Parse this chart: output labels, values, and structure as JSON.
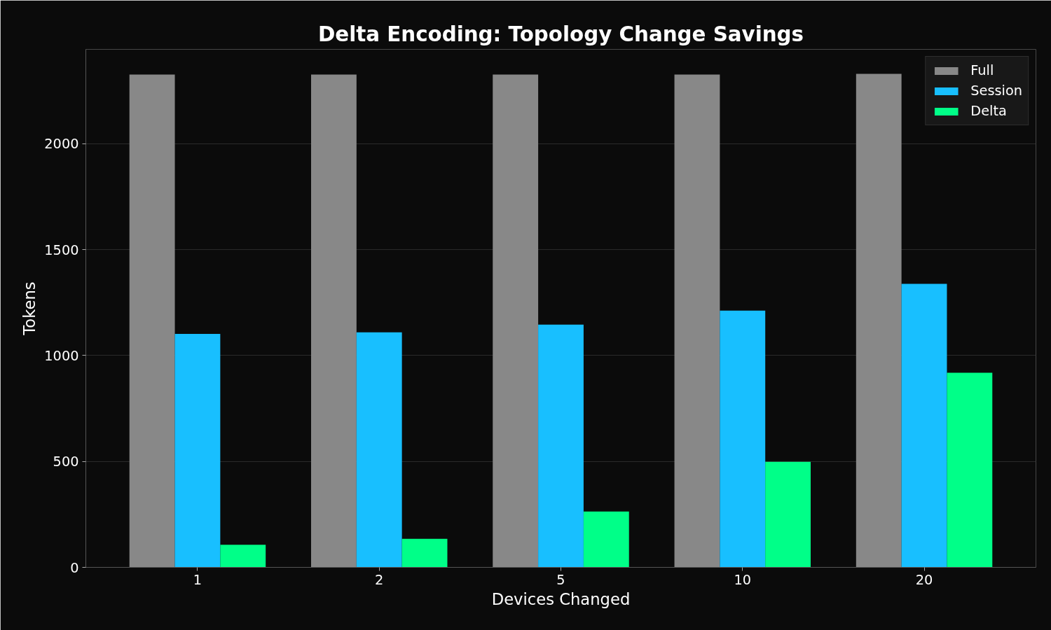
{
  "chart_data": {
    "type": "bar",
    "title": "Delta Encoding: Topology Change Savings",
    "xlabel": "Devices Changed",
    "ylabel": "Tokens",
    "categories": [
      "1",
      "2",
      "5",
      "10",
      "20"
    ],
    "series": [
      {
        "name": "Full",
        "color": "#888888",
        "values": [
          2327,
          2327,
          2327,
          2327,
          2330
        ]
      },
      {
        "name": "Session",
        "color": "#18bfff",
        "values": [
          1102,
          1110,
          1146,
          1212,
          1339
        ]
      },
      {
        "name": "Delta",
        "color": "#00ff88",
        "values": [
          107,
          135,
          264,
          498,
          919
        ]
      }
    ],
    "ylim": [
      0,
      2446
    ],
    "yticks": [
      0,
      500,
      1000,
      1500,
      2000
    ],
    "grid": "y",
    "legend": "top right"
  }
}
